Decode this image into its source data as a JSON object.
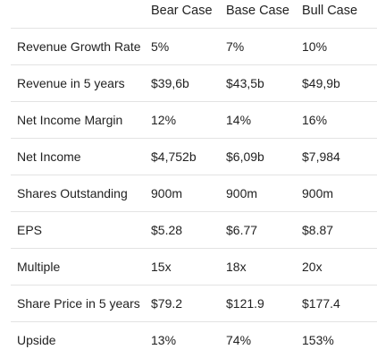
{
  "table": {
    "headers": [
      "",
      "Bear Case",
      "Base Case",
      "Bull Case"
    ],
    "rows": [
      {
        "label": "Revenue Growth Rate",
        "bear": "5%",
        "base": "7%",
        "bull": "10%"
      },
      {
        "label": "Revenue in 5 years",
        "bear": "$39,6b",
        "base": "$43,5b",
        "bull": "$49,9b"
      },
      {
        "label": "Net Income Margin",
        "bear": "12%",
        "base": "14%",
        "bull": "16%"
      },
      {
        "label": "Net Income",
        "bear": "$4,752b",
        "base": "$6,09b",
        "bull": "$7,984"
      },
      {
        "label": "Shares Outstanding",
        "bear": "900m",
        "base": "900m",
        "bull": "900m"
      },
      {
        "label": "EPS",
        "bear": "$5.28",
        "base": "$6.77",
        "bull": "$8.87"
      },
      {
        "label": "Multiple",
        "bear": "15x",
        "base": "18x",
        "bull": "20x"
      },
      {
        "label": "Share Price in 5 years",
        "bear": "$79.2",
        "base": "$121.9",
        "bull": "$177.4"
      },
      {
        "label": "Upside",
        "bear": "13%",
        "base": "74%",
        "bull": "153%"
      }
    ]
  }
}
